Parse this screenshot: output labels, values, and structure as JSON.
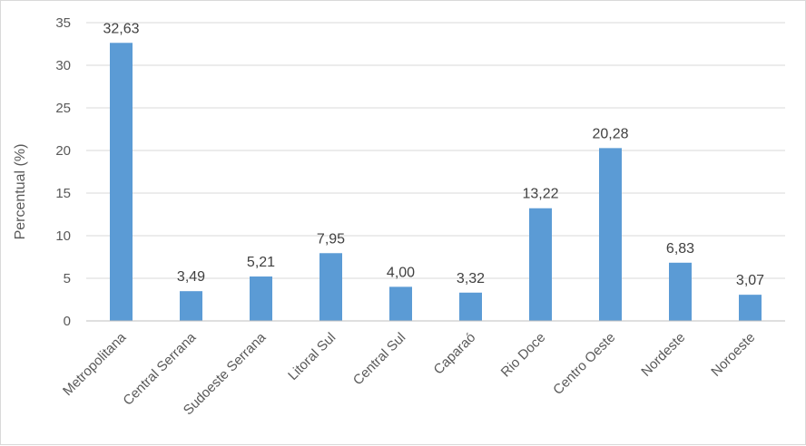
{
  "chart_data": {
    "type": "bar",
    "title": "",
    "xlabel": "",
    "ylabel": "Percentual (%)",
    "ylim": [
      0,
      35
    ],
    "yticks": [
      0,
      5,
      10,
      15,
      20,
      25,
      30,
      35
    ],
    "grid": true,
    "legend": "none",
    "bar_color": "#5b9bd5",
    "categories": [
      "Metropolitana",
      "Central Serrana",
      "Sudoeste Serrana",
      "Litoral Sul",
      "Central Sul",
      "Caparaó",
      "Rio Doce",
      "Centro Oeste",
      "Nordeste",
      "Noroeste"
    ],
    "values": [
      32.63,
      3.49,
      5.21,
      7.95,
      4.0,
      3.32,
      13.22,
      20.28,
      6.83,
      3.07
    ],
    "data_labels": [
      "32,63",
      "3,49",
      "5,21",
      "7,95",
      "4,00",
      "3,32",
      "13,22",
      "20,28",
      "6,83",
      "3,07"
    ]
  }
}
